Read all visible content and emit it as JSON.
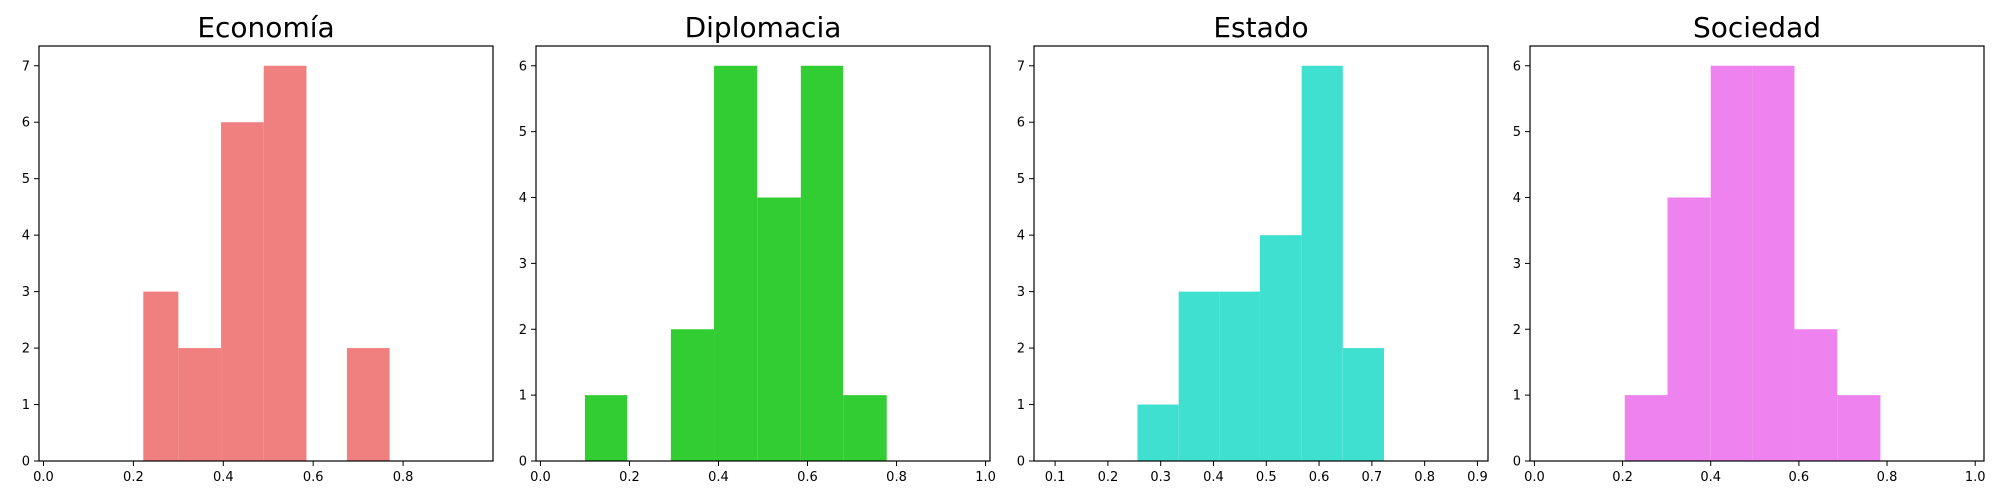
{
  "chart_data": [
    {
      "type": "histogram",
      "title": "Economía",
      "color": "#f08080",
      "bins": [
        {
          "x0": 0.222,
          "x1": 0.3,
          "count": 3
        },
        {
          "x0": 0.3,
          "x1": 0.395,
          "count": 2
        },
        {
          "x0": 0.395,
          "x1": 0.49,
          "count": 6
        },
        {
          "x0": 0.49,
          "x1": 0.585,
          "count": 7
        },
        {
          "x0": 0.585,
          "x1": 0.675,
          "count": 0
        },
        {
          "x0": 0.675,
          "x1": 0.77,
          "count": 2
        }
      ],
      "xlim": [
        -0.01,
        1.0
      ],
      "ylim": [
        0,
        7.35
      ],
      "xticks": [
        {
          "value": 0.0,
          "label": "0.0"
        },
        {
          "value": 0.2,
          "label": "0.2"
        },
        {
          "value": 0.4,
          "label": "0.4"
        },
        {
          "value": 0.6,
          "label": "0.6"
        },
        {
          "value": 0.8,
          "label": "0.8"
        }
      ],
      "yticks": [
        {
          "value": 0,
          "label": "0"
        },
        {
          "value": 1,
          "label": "1"
        },
        {
          "value": 2,
          "label": "2"
        },
        {
          "value": 3,
          "label": "3"
        },
        {
          "value": 4,
          "label": "4"
        },
        {
          "value": 5,
          "label": "5"
        },
        {
          "value": 6,
          "label": "6"
        },
        {
          "value": 7,
          "label": "7"
        }
      ]
    },
    {
      "type": "histogram",
      "title": "Diplomacia",
      "color": "#32cd32",
      "bins": [
        {
          "x0": 0.1,
          "x1": 0.195,
          "count": 1
        },
        {
          "x0": 0.195,
          "x1": 0.293,
          "count": 0
        },
        {
          "x0": 0.293,
          "x1": 0.39,
          "count": 2
        },
        {
          "x0": 0.39,
          "x1": 0.487,
          "count": 6
        },
        {
          "x0": 0.487,
          "x1": 0.585,
          "count": 4
        },
        {
          "x0": 0.585,
          "x1": 0.68,
          "count": 6
        },
        {
          "x0": 0.68,
          "x1": 0.778,
          "count": 1
        }
      ],
      "xlim": [
        -0.01,
        1.01
      ],
      "ylim": [
        0,
        6.3
      ],
      "xticks": [
        {
          "value": 0.0,
          "label": "0.0"
        },
        {
          "value": 0.2,
          "label": "0.2"
        },
        {
          "value": 0.4,
          "label": "0.4"
        },
        {
          "value": 0.6,
          "label": "0.6"
        },
        {
          "value": 0.8,
          "label": "0.8"
        },
        {
          "value": 1.0,
          "label": "1.0"
        }
      ],
      "yticks": [
        {
          "value": 0,
          "label": "0"
        },
        {
          "value": 1,
          "label": "1"
        },
        {
          "value": 2,
          "label": "2"
        },
        {
          "value": 3,
          "label": "3"
        },
        {
          "value": 4,
          "label": "4"
        },
        {
          "value": 5,
          "label": "5"
        },
        {
          "value": 6,
          "label": "6"
        }
      ]
    },
    {
      "type": "histogram",
      "title": "Estado",
      "color": "#40e0d0",
      "bins": [
        {
          "x0": 0.256,
          "x1": 0.334,
          "count": 1
        },
        {
          "x0": 0.334,
          "x1": 0.412,
          "count": 3
        },
        {
          "x0": 0.412,
          "x1": 0.488,
          "count": 3
        },
        {
          "x0": 0.488,
          "x1": 0.567,
          "count": 4
        },
        {
          "x0": 0.567,
          "x1": 0.645,
          "count": 7
        },
        {
          "x0": 0.645,
          "x1": 0.723,
          "count": 2
        }
      ],
      "xlim": [
        0.06,
        0.92
      ],
      "ylim": [
        0,
        7.35
      ],
      "xticks": [
        {
          "value": 0.1,
          "label": "0.1"
        },
        {
          "value": 0.2,
          "label": "0.2"
        },
        {
          "value": 0.3,
          "label": "0.3"
        },
        {
          "value": 0.4,
          "label": "0.4"
        },
        {
          "value": 0.5,
          "label": "0.5"
        },
        {
          "value": 0.6,
          "label": "0.6"
        },
        {
          "value": 0.7,
          "label": "0.7"
        },
        {
          "value": 0.8,
          "label": "0.8"
        },
        {
          "value": 0.9,
          "label": "0.9"
        }
      ],
      "yticks": [
        {
          "value": 0,
          "label": "0"
        },
        {
          "value": 1,
          "label": "1"
        },
        {
          "value": 2,
          "label": "2"
        },
        {
          "value": 3,
          "label": "3"
        },
        {
          "value": 4,
          "label": "4"
        },
        {
          "value": 5,
          "label": "5"
        },
        {
          "value": 6,
          "label": "6"
        },
        {
          "value": 7,
          "label": "7"
        }
      ]
    },
    {
      "type": "histogram",
      "title": "Sociedad",
      "color": "#ee82ee",
      "bins": [
        {
          "x0": 0.205,
          "x1": 0.302,
          "count": 1
        },
        {
          "x0": 0.302,
          "x1": 0.4,
          "count": 4
        },
        {
          "x0": 0.4,
          "x1": 0.495,
          "count": 6
        },
        {
          "x0": 0.495,
          "x1": 0.59,
          "count": 6
        },
        {
          "x0": 0.59,
          "x1": 0.687,
          "count": 2
        },
        {
          "x0": 0.687,
          "x1": 0.785,
          "count": 1
        }
      ],
      "xlim": [
        -0.01,
        1.02
      ],
      "ylim": [
        0,
        6.3
      ],
      "xticks": [
        {
          "value": 0.0,
          "label": "0.0"
        },
        {
          "value": 0.2,
          "label": "0.2"
        },
        {
          "value": 0.4,
          "label": "0.4"
        },
        {
          "value": 0.6,
          "label": "0.6"
        },
        {
          "value": 0.8,
          "label": "0.8"
        },
        {
          "value": 1.0,
          "label": "1.0"
        }
      ],
      "yticks": [
        {
          "value": 0,
          "label": "0"
        },
        {
          "value": 1,
          "label": "1"
        },
        {
          "value": 2,
          "label": "2"
        },
        {
          "value": 3,
          "label": "3"
        },
        {
          "value": 4,
          "label": "4"
        },
        {
          "value": 5,
          "label": "5"
        },
        {
          "value": 6,
          "label": "6"
        }
      ]
    }
  ]
}
